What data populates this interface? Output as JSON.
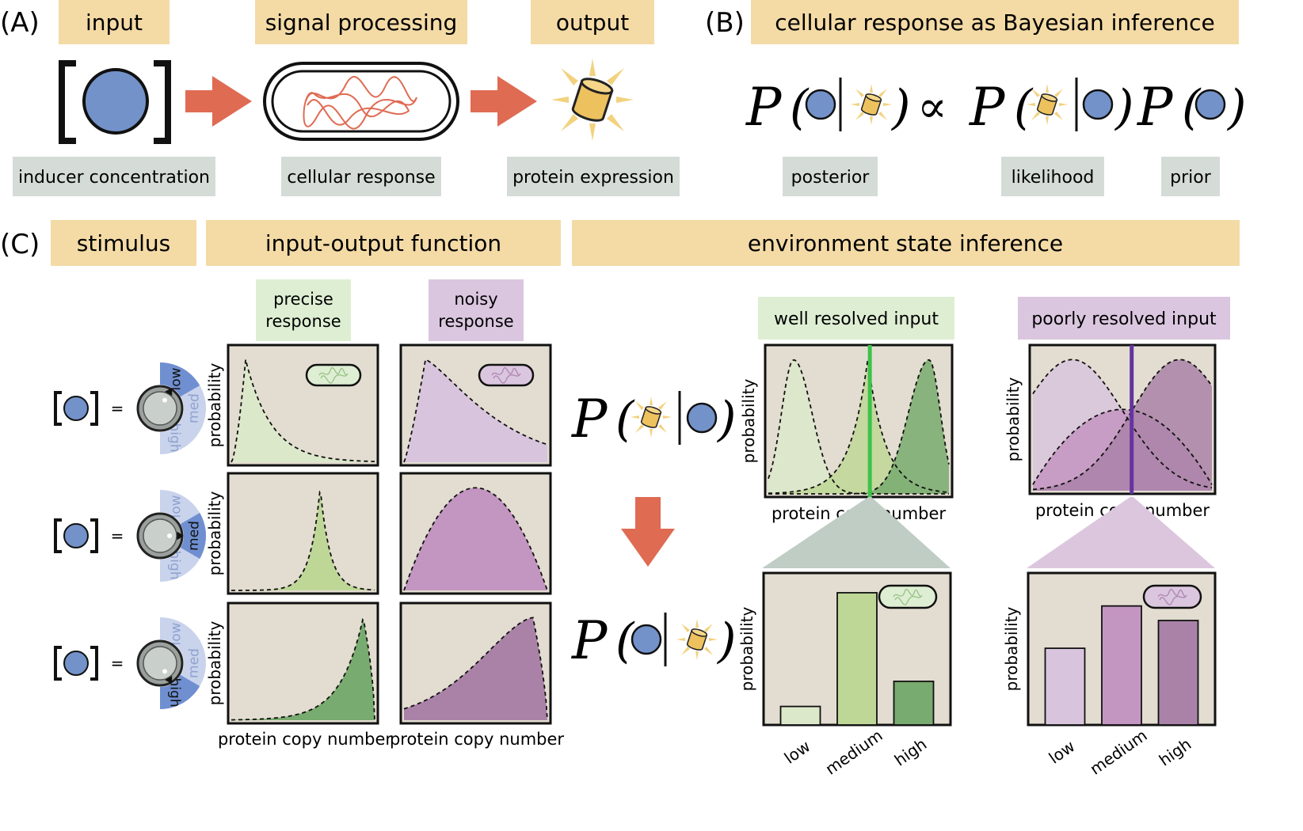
{
  "panel_a": {
    "letter": "(A)",
    "headers": [
      "input",
      "signal processing",
      "output"
    ],
    "captions": [
      "inducer concentration",
      "cellular response",
      "protein expression"
    ]
  },
  "panel_b": {
    "letter": "(B)",
    "header": "cellular response as Bayesian inference",
    "p_symbol": "P",
    "proportional_symbol": "∝",
    "terms": [
      "posterior",
      "likelihood",
      "prior"
    ]
  },
  "panel_c": {
    "letter": "(C)",
    "headers": [
      "stimulus",
      "input-output function",
      "environment state inference"
    ],
    "response_tags": [
      "precise response",
      "noisy response"
    ],
    "inference_tags": [
      "well resolved input",
      "poorly resolved input"
    ],
    "dial_labels": [
      "low",
      "med",
      "high"
    ],
    "equals": "=",
    "axis": {
      "y": "probability",
      "x": "protein copy number"
    },
    "bar_categories": [
      "low",
      "medium",
      "high"
    ],
    "well_resolved_bars": [
      0.14,
      1.0,
      0.33
    ],
    "poorly_resolved_bars": [
      0.58,
      0.9,
      0.79
    ],
    "precise_curves": [
      "peak-low",
      "peak-med",
      "peak-high"
    ],
    "noisy_curves": [
      "broad-low",
      "broad-med",
      "broad-high"
    ]
  },
  "colors": {
    "header_bg": "#f4dba6",
    "caption_bg": "#d5dcd7",
    "plot_bg": "#e3ddd1",
    "inducer_blue": "#7392c9",
    "arrow_red": "#df6b53",
    "protein_yellow": "#edc15e",
    "tag_green": "#deeed3",
    "tag_purple": "#dbc6df",
    "green_light": "#dbe9ca",
    "green_med": "#bed797",
    "green_dark": "#78ab6f",
    "purple_light": "#d8c5dd",
    "purple_med": "#c395c1",
    "purple_dark": "#aa82a8",
    "indicator_green": "#3cc24a",
    "indicator_purple": "#6534a0"
  }
}
